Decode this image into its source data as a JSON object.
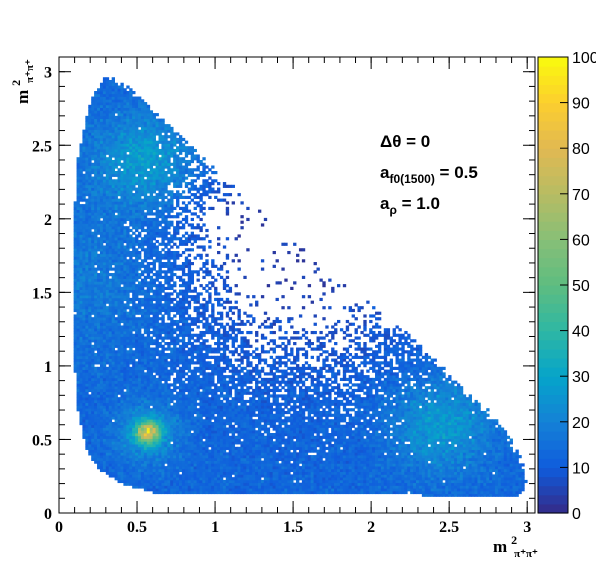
{
  "chart_data": {
    "type": "heatmap",
    "title": "",
    "xlabel": {
      "base": "m",
      "sup": "2",
      "sub": "π⁺π⁺"
    },
    "ylabel": {
      "base": "m",
      "sup": "2",
      "sub": "π⁺π⁺"
    },
    "xlim": [
      0,
      3.05
    ],
    "ylim": [
      0,
      3.1
    ],
    "x_ticks": [
      "0",
      "0.5",
      "1",
      "1.5",
      "2",
      "2.5",
      "3"
    ],
    "y_ticks": [
      "0",
      "0.5",
      "1",
      "1.5",
      "2",
      "2.5",
      "3"
    ],
    "z_range": [
      0,
      100
    ],
    "colorbar_ticks": [
      "0",
      "10",
      "20",
      "30",
      "40",
      "50",
      "60",
      "70",
      "80",
      "90",
      "100"
    ],
    "annotations": [
      {
        "parts": [
          {
            "t": "Δθ = 0"
          }
        ]
      },
      {
        "parts": [
          {
            "t": "a"
          },
          {
            "t": "f0(1500)",
            "sub": true
          },
          {
            "t": " = 0.5"
          }
        ]
      },
      {
        "parts": [
          {
            "t": "a"
          },
          {
            "t": "ρ",
            "sub": true
          },
          {
            "t": " = 1.0"
          }
        ]
      }
    ],
    "phase_space_boundary": {
      "x": [
        0.09,
        0.12,
        0.2,
        0.3,
        0.45,
        0.7,
        1.0,
        1.4,
        1.8,
        2.2,
        2.5,
        2.75,
        2.9,
        2.97,
        3.0,
        2.95,
        2.7,
        2.4,
        2.0,
        1.5,
        1.0,
        0.6,
        0.4,
        0.25,
        0.17,
        0.12,
        0.1,
        0.09
      ],
      "y": [
        1.9,
        2.4,
        2.8,
        2.98,
        2.9,
        2.65,
        2.35,
        1.95,
        1.6,
        1.25,
        0.95,
        0.7,
        0.5,
        0.35,
        0.2,
        0.12,
        0.11,
        0.12,
        0.13,
        0.13,
        0.13,
        0.14,
        0.2,
        0.3,
        0.45,
        0.7,
        1.0,
        1.4
      ]
    },
    "features": [
      {
        "name": "",
        "x": 0.57,
        "y": 0.55,
        "peak": 60
      },
      {
        "name": "",
        "x": 0.55,
        "y": 2.4,
        "peak": 30
      },
      {
        "name": "",
        "x": 2.45,
        "y": 0.6,
        "peak": 28
      },
      {
        "name": "",
        "x": 1.6,
        "y": 1.6,
        "peak": 0
      }
    ]
  }
}
